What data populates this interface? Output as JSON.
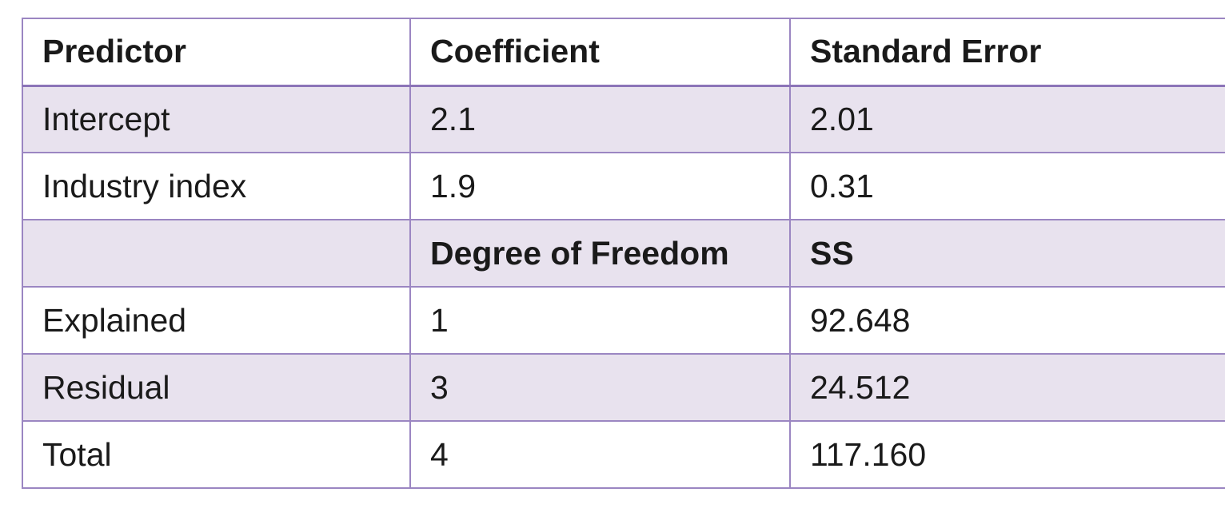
{
  "coefficients": {
    "headers": [
      "Predictor",
      "Coefficient",
      "Standard Error"
    ],
    "rows": [
      {
        "predictor": "Intercept",
        "coefficient": "2.1",
        "standard_error": "2.01"
      },
      {
        "predictor": "Industry index",
        "coefficient": "1.9",
        "standard_error": "0.31"
      }
    ]
  },
  "anova": {
    "headers": [
      "",
      "Degree of Freedom",
      "SS"
    ],
    "rows": [
      {
        "source": "Explained",
        "df": "1",
        "ss": "92.648"
      },
      {
        "source": "Residual",
        "df": "3",
        "ss": "24.512"
      },
      {
        "source": "Total",
        "df": "4",
        "ss": "117.160"
      }
    ]
  },
  "colors": {
    "border": "#9b86c2",
    "shaded_row": "#e8e2ee",
    "text": "#1a1a1a"
  }
}
